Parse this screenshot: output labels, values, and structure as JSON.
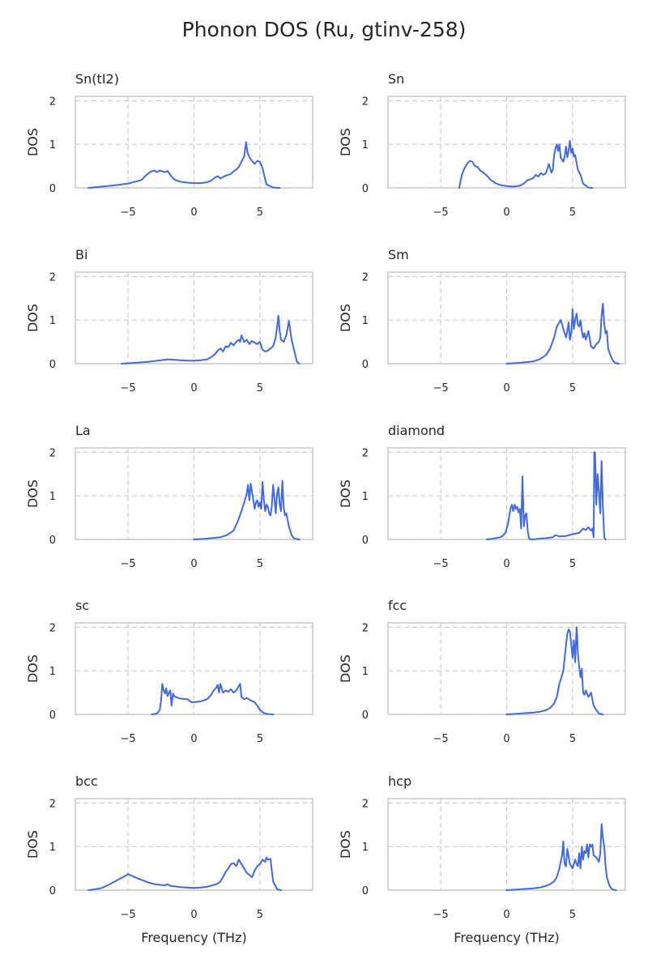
{
  "chart_data": {
    "type": "line",
    "title": "Phonon DOS (Ru, gtinv-258)",
    "xlabel": "Frequency (THz)",
    "ylabel": "DOS",
    "xlim": [
      -9.0,
      9.0
    ],
    "ylim": [
      0,
      2.1
    ],
    "xticks": [
      -5,
      0,
      5
    ],
    "yticks": [
      0,
      1,
      2
    ],
    "grid": true,
    "line_color": "#4169e1",
    "panels": [
      {
        "title": "Sn(tI2)",
        "x": [
          -8.0,
          -7.0,
          -6.0,
          -5.0,
          -4.0,
          -3.6,
          -3.3,
          -3.0,
          -2.8,
          -2.6,
          -2.4,
          -2.2,
          -2.0,
          -1.8,
          -1.6,
          -1.4,
          -1.0,
          -0.5,
          0.0,
          0.5,
          1.0,
          1.3,
          1.6,
          1.8,
          2.0,
          2.2,
          2.4,
          2.6,
          2.8,
          3.0,
          3.2,
          3.4,
          3.6,
          3.8,
          3.95,
          4.05,
          4.2,
          4.4,
          4.6,
          4.8,
          5.0,
          5.2,
          5.5,
          6.0,
          6.5
        ],
        "y": [
          0.0,
          0.03,
          0.06,
          0.1,
          0.18,
          0.3,
          0.37,
          0.4,
          0.36,
          0.4,
          0.38,
          0.36,
          0.39,
          0.3,
          0.22,
          0.18,
          0.14,
          0.12,
          0.11,
          0.11,
          0.13,
          0.17,
          0.24,
          0.27,
          0.22,
          0.25,
          0.28,
          0.3,
          0.32,
          0.38,
          0.42,
          0.48,
          0.6,
          0.72,
          1.05,
          0.82,
          0.7,
          0.62,
          0.55,
          0.62,
          0.6,
          0.45,
          0.08,
          0.01,
          0.0
        ]
      },
      {
        "title": "Sn",
        "x": [
          -3.6,
          -3.5,
          -3.4,
          -3.2,
          -3.0,
          -2.8,
          -2.6,
          -2.4,
          -2.2,
          -2.0,
          -1.8,
          -1.5,
          -1.2,
          -0.8,
          -0.4,
          0.0,
          0.5,
          1.0,
          1.3,
          1.6,
          2.0,
          2.2,
          2.4,
          2.6,
          2.8,
          3.0,
          3.2,
          3.4,
          3.5,
          3.6,
          3.7,
          3.8,
          3.9,
          4.0,
          4.1,
          4.3,
          4.4,
          4.5,
          4.6,
          4.7,
          4.8,
          4.9,
          5.0,
          5.1,
          5.2,
          5.4,
          5.6,
          5.8,
          6.0,
          6.2,
          6.5
        ],
        "y": [
          0.0,
          0.15,
          0.3,
          0.45,
          0.55,
          0.62,
          0.6,
          0.5,
          0.48,
          0.4,
          0.36,
          0.28,
          0.18,
          0.1,
          0.06,
          0.04,
          0.03,
          0.05,
          0.1,
          0.18,
          0.22,
          0.3,
          0.26,
          0.34,
          0.3,
          0.35,
          0.55,
          0.35,
          0.42,
          0.75,
          0.9,
          1.0,
          0.85,
          1.0,
          0.7,
          0.6,
          0.72,
          0.95,
          0.7,
          0.85,
          1.08,
          0.8,
          0.9,
          0.72,
          0.75,
          0.42,
          0.3,
          0.1,
          0.05,
          0.01,
          0.0
        ]
      },
      {
        "title": "Bi",
        "x": [
          -5.5,
          -4.5,
          -3.5,
          -3.0,
          -2.5,
          -2.0,
          -1.5,
          -1.0,
          -0.5,
          0.0,
          0.5,
          1.0,
          1.3,
          1.6,
          1.8,
          2.0,
          2.2,
          2.4,
          2.6,
          2.8,
          3.0,
          3.2,
          3.4,
          3.5,
          3.6,
          3.8,
          4.0,
          4.2,
          4.4,
          4.6,
          4.8,
          5.0,
          5.2,
          5.4,
          5.6,
          5.8,
          6.0,
          6.2,
          6.3,
          6.4,
          6.5,
          6.6,
          6.8,
          7.0,
          7.2,
          7.4,
          7.6,
          7.8,
          8.0
        ],
        "y": [
          0.0,
          0.02,
          0.04,
          0.06,
          0.08,
          0.1,
          0.09,
          0.08,
          0.07,
          0.07,
          0.08,
          0.1,
          0.15,
          0.22,
          0.3,
          0.35,
          0.28,
          0.4,
          0.38,
          0.48,
          0.42,
          0.5,
          0.55,
          0.5,
          0.65,
          0.5,
          0.55,
          0.45,
          0.52,
          0.48,
          0.45,
          0.5,
          0.32,
          0.28,
          0.3,
          0.35,
          0.4,
          0.6,
          0.85,
          1.1,
          0.75,
          0.55,
          0.5,
          0.65,
          0.98,
          0.55,
          0.3,
          0.05,
          0.0
        ]
      },
      {
        "title": "Sm",
        "x": [
          0.0,
          1.0,
          2.0,
          2.5,
          3.0,
          3.3,
          3.6,
          3.8,
          4.0,
          4.1,
          4.2,
          4.3,
          4.5,
          4.6,
          4.7,
          4.8,
          4.9,
          5.0,
          5.1,
          5.2,
          5.3,
          5.4,
          5.5,
          5.6,
          5.7,
          5.8,
          5.9,
          6.0,
          6.2,
          6.4,
          6.6,
          6.8,
          7.0,
          7.1,
          7.2,
          7.3,
          7.4,
          7.5,
          7.6,
          7.7,
          7.8,
          8.0,
          8.2,
          8.5
        ],
        "y": [
          0.0,
          0.02,
          0.05,
          0.1,
          0.2,
          0.35,
          0.6,
          0.85,
          0.95,
          1.0,
          0.9,
          0.8,
          0.6,
          0.75,
          0.95,
          0.55,
          0.7,
          1.25,
          0.8,
          1.0,
          1.15,
          0.9,
          0.85,
          1.0,
          0.75,
          0.6,
          0.7,
          0.55,
          0.75,
          0.4,
          0.35,
          0.45,
          0.5,
          0.6,
          1.1,
          1.38,
          0.9,
          0.7,
          0.75,
          0.35,
          0.25,
          0.1,
          0.02,
          0.0
        ]
      },
      {
        "title": "La",
        "x": [
          0.0,
          1.0,
          2.0,
          2.5,
          3.0,
          3.3,
          3.6,
          3.8,
          4.0,
          4.1,
          4.2,
          4.3,
          4.4,
          4.5,
          4.6,
          4.7,
          4.8,
          4.9,
          5.0,
          5.1,
          5.2,
          5.3,
          5.4,
          5.5,
          5.6,
          5.7,
          5.8,
          5.9,
          6.0,
          6.1,
          6.2,
          6.3,
          6.4,
          6.5,
          6.6,
          6.7,
          6.8,
          6.9,
          7.0,
          7.2,
          7.4,
          7.6,
          8.0
        ],
        "y": [
          0.0,
          0.02,
          0.05,
          0.1,
          0.2,
          0.4,
          0.65,
          0.85,
          1.05,
          1.25,
          0.9,
          1.28,
          1.1,
          0.9,
          0.7,
          0.85,
          0.9,
          0.75,
          0.85,
          0.7,
          1.32,
          0.9,
          0.65,
          0.8,
          0.75,
          0.6,
          0.55,
          0.75,
          1.25,
          0.95,
          0.6,
          1.05,
          1.2,
          0.8,
          0.65,
          1.35,
          0.75,
          0.55,
          0.6,
          0.3,
          0.1,
          0.02,
          0.0
        ]
      },
      {
        "title": "diamond",
        "x": [
          -1.5,
          -1.0,
          -0.5,
          -0.3,
          -0.1,
          0.1,
          0.3,
          0.4,
          0.5,
          0.6,
          0.7,
          0.8,
          0.9,
          1.0,
          1.1,
          1.2,
          1.3,
          1.4,
          1.5,
          1.6,
          1.7,
          1.8,
          1.9,
          2.0,
          2.5,
          3.0,
          3.5,
          3.7,
          4.0,
          4.5,
          5.0,
          5.5,
          5.8,
          6.0,
          6.2,
          6.4,
          6.5,
          6.55,
          6.6,
          6.65,
          6.7,
          6.8,
          6.9,
          7.0,
          7.1,
          7.2,
          7.3,
          7.4,
          7.5
        ],
        "y": [
          0.0,
          0.02,
          0.05,
          0.08,
          0.15,
          0.35,
          0.72,
          0.8,
          0.65,
          0.8,
          0.7,
          0.75,
          0.62,
          0.7,
          0.25,
          1.45,
          0.3,
          0.55,
          0.6,
          0.2,
          0.02,
          0.01,
          0.0,
          0.0,
          0.02,
          0.03,
          0.05,
          0.1,
          0.07,
          0.08,
          0.12,
          0.15,
          0.25,
          0.22,
          0.28,
          0.2,
          0.25,
          0.15,
          0.05,
          2.0,
          2.0,
          0.8,
          1.5,
          1.1,
          0.6,
          1.8,
          0.75,
          0.05,
          0.0
        ]
      },
      {
        "title": "sc",
        "x": [
          -3.2,
          -2.8,
          -2.6,
          -2.5,
          -2.4,
          -2.3,
          -2.2,
          -2.1,
          -2.0,
          -1.9,
          -1.8,
          -1.7,
          -1.6,
          -1.5,
          -1.4,
          -1.0,
          -0.5,
          -0.2,
          0.0,
          0.5,
          1.0,
          1.3,
          1.5,
          1.7,
          1.8,
          1.9,
          2.0,
          2.1,
          2.2,
          2.4,
          2.6,
          2.8,
          3.0,
          3.2,
          3.4,
          3.5,
          3.6,
          3.8,
          4.0,
          4.3,
          4.6,
          4.8,
          5.0,
          5.3,
          5.6,
          6.0
        ],
        "y": [
          0.0,
          0.02,
          0.1,
          0.3,
          0.7,
          0.55,
          0.48,
          0.6,
          0.42,
          0.5,
          0.55,
          0.2,
          0.48,
          0.42,
          0.4,
          0.36,
          0.35,
          0.28,
          0.28,
          0.3,
          0.35,
          0.45,
          0.55,
          0.62,
          0.68,
          0.5,
          0.7,
          0.6,
          0.5,
          0.55,
          0.52,
          0.58,
          0.5,
          0.55,
          0.65,
          0.7,
          0.4,
          0.35,
          0.38,
          0.32,
          0.28,
          0.2,
          0.1,
          0.03,
          0.01,
          0.0
        ]
      },
      {
        "title": "fcc",
        "x": [
          0.0,
          1.0,
          2.0,
          2.5,
          3.0,
          3.3,
          3.6,
          3.8,
          4.0,
          4.2,
          4.3,
          4.4,
          4.5,
          4.6,
          4.7,
          4.8,
          4.9,
          5.0,
          5.1,
          5.2,
          5.3,
          5.35,
          5.4,
          5.5,
          5.6,
          5.7,
          5.8,
          5.9,
          6.0,
          6.2,
          6.4,
          6.6,
          6.8,
          7.0,
          7.3
        ],
        "y": [
          0.0,
          0.02,
          0.04,
          0.06,
          0.1,
          0.15,
          0.25,
          0.4,
          0.7,
          0.9,
          1.0,
          1.3,
          1.6,
          1.85,
          1.95,
          1.9,
          1.6,
          1.3,
          1.7,
          1.2,
          2.0,
          1.8,
          1.4,
          1.1,
          0.85,
          1.05,
          0.5,
          0.45,
          0.55,
          0.4,
          0.5,
          0.2,
          0.1,
          0.02,
          0.0
        ]
      },
      {
        "title": "bcc",
        "x": [
          -8.0,
          -7.5,
          -7.0,
          -6.5,
          -6.0,
          -5.5,
          -5.2,
          -5.0,
          -4.8,
          -4.5,
          -4.0,
          -3.5,
          -3.0,
          -2.5,
          -2.2,
          -2.0,
          -1.8,
          -1.5,
          -1.0,
          -0.5,
          0.0,
          0.5,
          1.0,
          1.5,
          1.8,
          2.0,
          2.2,
          2.4,
          2.6,
          2.8,
          3.0,
          3.2,
          3.4,
          3.6,
          3.8,
          4.0,
          4.2,
          4.4,
          4.6,
          4.8,
          5.0,
          5.2,
          5.4,
          5.5,
          5.6,
          5.8,
          6.0,
          6.3,
          6.6
        ],
        "y": [
          0.0,
          0.02,
          0.05,
          0.12,
          0.2,
          0.28,
          0.33,
          0.37,
          0.34,
          0.3,
          0.24,
          0.18,
          0.14,
          0.12,
          0.11,
          0.14,
          0.1,
          0.09,
          0.07,
          0.06,
          0.05,
          0.06,
          0.08,
          0.12,
          0.15,
          0.2,
          0.3,
          0.42,
          0.5,
          0.6,
          0.62,
          0.55,
          0.7,
          0.6,
          0.5,
          0.4,
          0.35,
          0.3,
          0.45,
          0.55,
          0.6,
          0.7,
          0.65,
          0.75,
          0.7,
          0.72,
          0.2,
          0.02,
          0.0
        ]
      },
      {
        "title": "hcp",
        "x": [
          0.0,
          1.0,
          2.0,
          2.5,
          3.0,
          3.3,
          3.6,
          3.8,
          4.0,
          4.2,
          4.3,
          4.35,
          4.4,
          4.5,
          4.6,
          4.8,
          5.0,
          5.2,
          5.3,
          5.4,
          5.5,
          5.6,
          5.7,
          5.8,
          5.9,
          6.0,
          6.1,
          6.2,
          6.3,
          6.4,
          6.5,
          6.6,
          6.8,
          7.0,
          7.1,
          7.2,
          7.3,
          7.4,
          7.5,
          7.6,
          7.8,
          8.0,
          8.3
        ],
        "y": [
          0.0,
          0.02,
          0.04,
          0.06,
          0.1,
          0.14,
          0.2,
          0.3,
          0.5,
          0.8,
          1.12,
          0.8,
          0.6,
          0.55,
          0.95,
          0.6,
          0.5,
          0.7,
          0.6,
          0.55,
          0.85,
          0.5,
          1.0,
          0.7,
          0.9,
          0.85,
          1.05,
          0.75,
          1.05,
          1.0,
          1.05,
          0.8,
          0.75,
          0.65,
          0.85,
          1.52,
          1.2,
          1.0,
          0.55,
          0.3,
          0.1,
          0.02,
          0.0
        ]
      }
    ]
  }
}
